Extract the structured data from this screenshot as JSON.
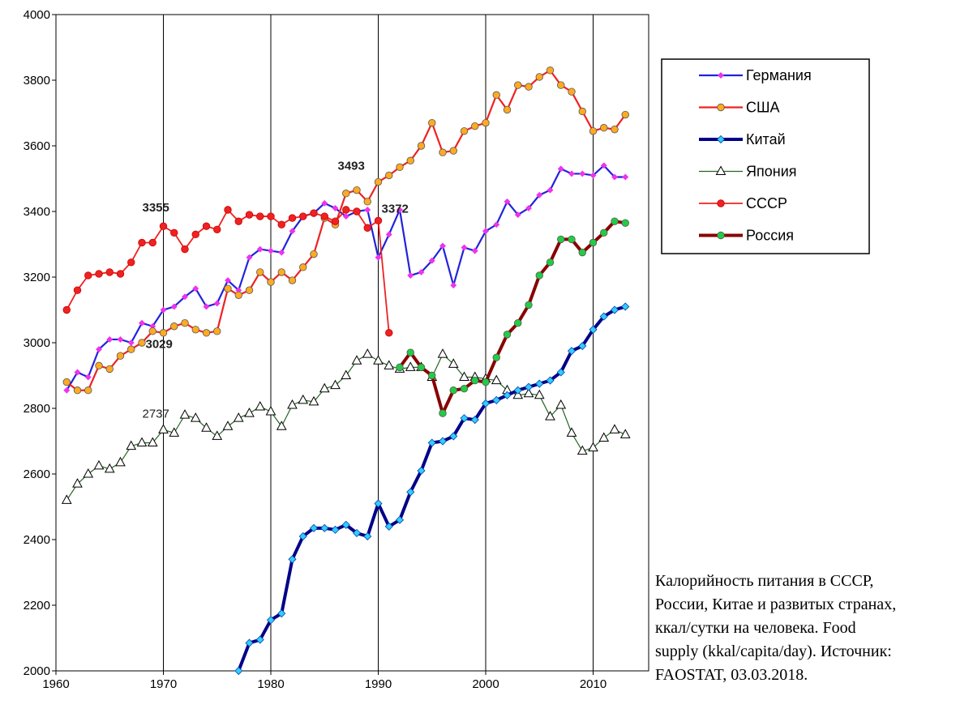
{
  "caption": "Калорийность питания в СССР,\nРоссии, Китае и развитых странах,\nккал/сутки на человека. Food\nsupply (kkal/capita/day). Источник:\nFAOSTAT,  03.03.2018.",
  "chart_data": {
    "type": "line",
    "title": "",
    "xlabel": "",
    "ylabel": "",
    "xlim": [
      1960,
      2015
    ],
    "ylim": [
      2000,
      4000
    ],
    "xticks": [
      1960,
      1970,
      1980,
      1990,
      2000,
      2010
    ],
    "yticks": [
      2000,
      2200,
      2400,
      2600,
      2800,
      3000,
      3200,
      3400,
      3600,
      3800,
      4000
    ],
    "grid": {
      "vertical": true,
      "horizontal": false
    },
    "legend_position": "right",
    "series": [
      {
        "name": "Германия",
        "color": "#2222dd",
        "marker_color": "#ee33ee",
        "marker": "diamond",
        "x": [
          1961,
          1962,
          1963,
          1964,
          1965,
          1966,
          1967,
          1968,
          1969,
          1970,
          1971,
          1972,
          1973,
          1974,
          1975,
          1976,
          1977,
          1978,
          1979,
          1980,
          1981,
          1982,
          1983,
          1984,
          1985,
          1986,
          1987,
          1988,
          1989,
          1990,
          1991,
          1992,
          1993,
          1994,
          1995,
          1996,
          1997,
          1998,
          1999,
          2000,
          2001,
          2002,
          2003,
          2004,
          2005,
          2006,
          2007,
          2008,
          2009,
          2010,
          2011,
          2012,
          2013
        ],
        "y": [
          2855,
          2910,
          2895,
          2980,
          3010,
          3010,
          3000,
          3060,
          3050,
          3100,
          3110,
          3140,
          3165,
          3110,
          3120,
          3190,
          3160,
          3260,
          3285,
          3280,
          3275,
          3340,
          3385,
          3395,
          3425,
          3410,
          3385,
          3400,
          3405,
          3260,
          3330,
          3405,
          3205,
          3215,
          3250,
          3295,
          3175,
          3290,
          3280,
          3340,
          3360,
          3430,
          3390,
          3410,
          3450,
          3465,
          3530,
          3515,
          3515,
          3510,
          3540,
          3505,
          3505
        ]
      },
      {
        "name": "США",
        "color": "#ee2222",
        "marker_color": "#ffaa22",
        "marker": "circle",
        "x": [
          1961,
          1962,
          1963,
          1964,
          1965,
          1966,
          1967,
          1968,
          1969,
          1970,
          1971,
          1972,
          1973,
          1974,
          1975,
          1976,
          1977,
          1978,
          1979,
          1980,
          1981,
          1982,
          1983,
          1984,
          1985,
          1986,
          1987,
          1988,
          1989,
          1990,
          1991,
          1992,
          1993,
          1994,
          1995,
          1996,
          1997,
          1998,
          1999,
          2000,
          2001,
          2002,
          2003,
          2004,
          2005,
          2006,
          2007,
          2008,
          2009,
          2010,
          2011,
          2012,
          2013
        ],
        "y": [
          2880,
          2855,
          2855,
          2930,
          2920,
          2960,
          2980,
          3000,
          3035,
          3030,
          3050,
          3060,
          3040,
          3030,
          3035,
          3165,
          3145,
          3160,
          3215,
          3185,
          3215,
          3190,
          3230,
          3270,
          3380,
          3360,
          3455,
          3465,
          3430,
          3490,
          3510,
          3535,
          3555,
          3600,
          3670,
          3580,
          3585,
          3645,
          3660,
          3670,
          3755,
          3710,
          3785,
          3780,
          3810,
          3830,
          3785,
          3765,
          3705,
          3645,
          3655,
          3650,
          3695
        ]
      },
      {
        "name": "Китай",
        "color": "#000088",
        "marker_color": "#33ccff",
        "marker": "diamond",
        "x": [
          1977,
          1978,
          1979,
          1980,
          1981,
          1982,
          1983,
          1984,
          1985,
          1986,
          1987,
          1988,
          1989,
          1990,
          1991,
          1992,
          1993,
          1994,
          1995,
          1996,
          1997,
          1998,
          1999,
          2000,
          2001,
          2002,
          2003,
          2004,
          2005,
          2006,
          2007,
          2008,
          2009,
          2010,
          2011,
          2012,
          2013
        ],
        "y": [
          2000,
          2085,
          2095,
          2155,
          2175,
          2340,
          2410,
          2435,
          2435,
          2430,
          2445,
          2420,
          2410,
          2510,
          2440,
          2460,
          2545,
          2610,
          2695,
          2700,
          2715,
          2770,
          2765,
          2815,
          2825,
          2840,
          2855,
          2865,
          2875,
          2885,
          2910,
          2975,
          2990,
          3040,
          3080,
          3100,
          3110
        ]
      },
      {
        "name": "Япония",
        "color": "#226622",
        "marker_color": "#ffffff",
        "marker": "triangle",
        "x": [
          1961,
          1962,
          1963,
          1964,
          1965,
          1966,
          1967,
          1968,
          1969,
          1970,
          1971,
          1972,
          1973,
          1974,
          1975,
          1976,
          1977,
          1978,
          1979,
          1980,
          1981,
          1982,
          1983,
          1984,
          1985,
          1986,
          1987,
          1988,
          1989,
          1990,
          1991,
          1992,
          1993,
          1994,
          1995,
          1996,
          1997,
          1998,
          1999,
          2000,
          2001,
          2002,
          2003,
          2004,
          2005,
          2006,
          2007,
          2008,
          2009,
          2010,
          2011,
          2012,
          2013
        ],
        "y": [
          2520,
          2570,
          2600,
          2625,
          2615,
          2635,
          2685,
          2695,
          2695,
          2735,
          2725,
          2780,
          2770,
          2740,
          2715,
          2745,
          2770,
          2785,
          2805,
          2790,
          2745,
          2810,
          2825,
          2820,
          2860,
          2870,
          2900,
          2945,
          2965,
          2945,
          2930,
          2920,
          2925,
          2925,
          2895,
          2965,
          2935,
          2895,
          2895,
          2890,
          2885,
          2855,
          2840,
          2845,
          2840,
          2775,
          2810,
          2725,
          2670,
          2680,
          2710,
          2735,
          2720
        ]
      },
      {
        "name": "СССР",
        "color": "#ee2222",
        "marker_color": "#ee2222",
        "marker": "circle",
        "x": [
          1961,
          1962,
          1963,
          1964,
          1965,
          1966,
          1967,
          1968,
          1969,
          1970,
          1971,
          1972,
          1973,
          1974,
          1975,
          1976,
          1977,
          1978,
          1979,
          1980,
          1981,
          1982,
          1983,
          1984,
          1985,
          1986,
          1987,
          1988,
          1989,
          1990,
          1991
        ],
        "y": [
          3100,
          3160,
          3205,
          3210,
          3215,
          3210,
          3245,
          3305,
          3305,
          3355,
          3335,
          3285,
          3330,
          3355,
          3345,
          3405,
          3370,
          3390,
          3385,
          3385,
          3360,
          3380,
          3385,
          3395,
          3385,
          3370,
          3405,
          3400,
          3350,
          3372,
          3030
        ]
      },
      {
        "name": "Россия",
        "color": "#880000",
        "marker_color": "#22cc44",
        "marker": "circle",
        "x": [
          1992,
          1993,
          1994,
          1995,
          1996,
          1997,
          1998,
          1999,
          2000,
          2001,
          2002,
          2003,
          2004,
          2005,
          2006,
          2007,
          2008,
          2009,
          2010,
          2011,
          2012,
          2013
        ],
        "y": [
          2925,
          2970,
          2925,
          2900,
          2785,
          2855,
          2860,
          2885,
          2880,
          2955,
          3025,
          3060,
          3115,
          3205,
          3245,
          3315,
          3315,
          3275,
          3305,
          3335,
          3370,
          3365
        ]
      }
    ],
    "annotations": [
      {
        "text": "3355",
        "x": 1970,
        "y": 3355,
        "bold": true
      },
      {
        "text": "3029",
        "x": 1970,
        "y": 3029,
        "bold": true
      },
      {
        "text": "2737",
        "x": 1970,
        "y": 2737,
        "bold": false
      },
      {
        "text": "3493",
        "x": 1990,
        "y": 3493,
        "bold": true
      },
      {
        "text": "3372",
        "x": 1990,
        "y": 3372,
        "bold": true
      }
    ]
  }
}
